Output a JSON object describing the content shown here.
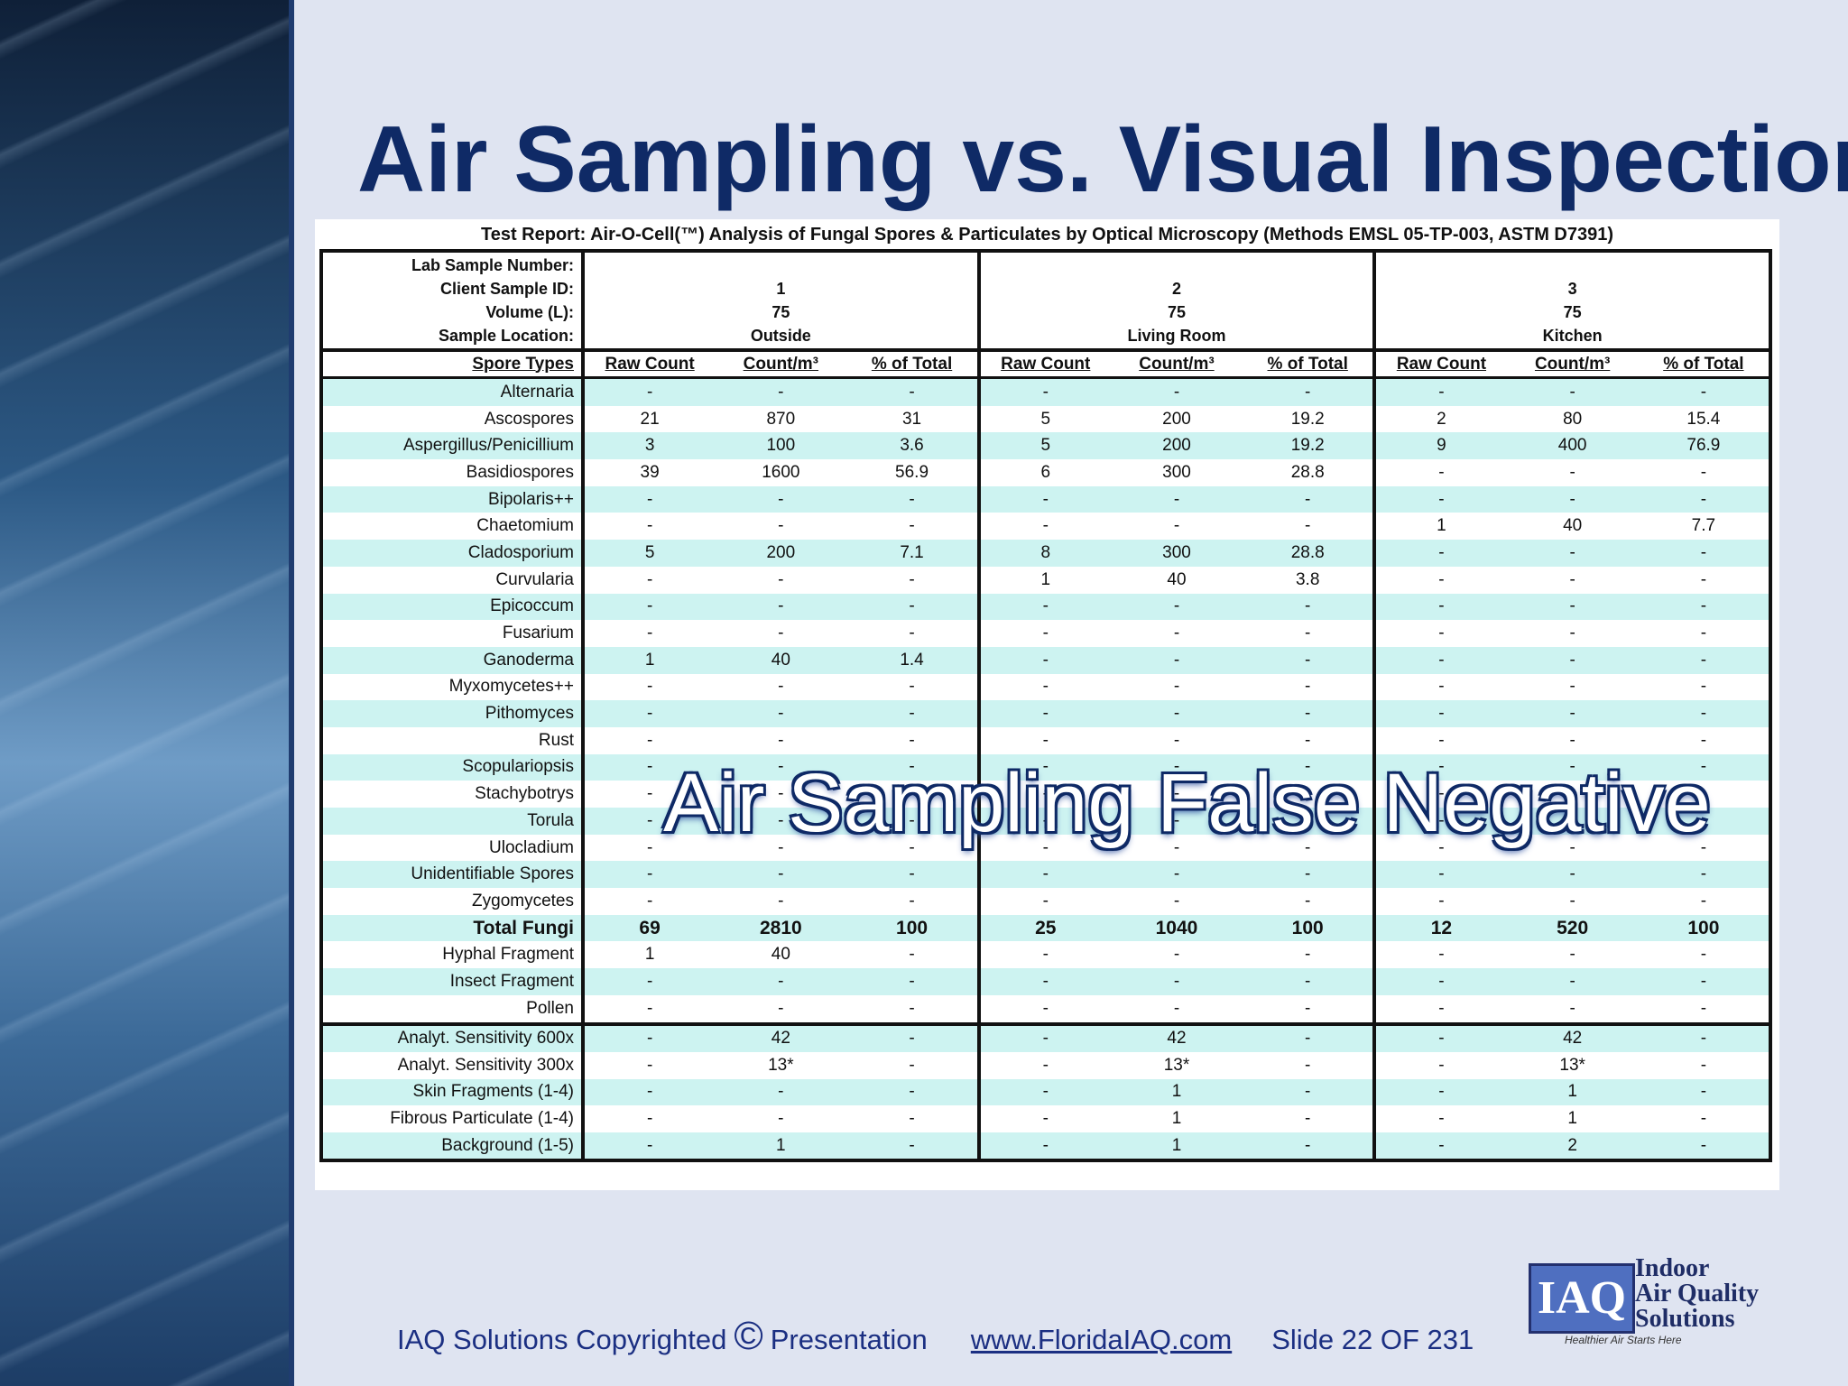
{
  "title": "Air Sampling vs. Visual Inspection",
  "table": {
    "caption": "Test Report: Air-O-Cell(™) Analysis of Fungal Spores & Particulates by Optical Microscopy (Methods EMSL 05-TP-003, ASTM D7391)",
    "header_labels": [
      "Lab Sample Number:",
      "Client Sample ID:",
      "Volume (L):",
      "Sample Location:"
    ],
    "samples": [
      {
        "client_id": "1",
        "volume": 75,
        "location": "Outside"
      },
      {
        "client_id": "2",
        "volume": 75,
        "location": "Living Room"
      },
      {
        "client_id": "3",
        "volume": 75,
        "location": "Kitchen"
      }
    ],
    "column_headers": [
      "Spore Types",
      "Raw Count",
      "Count/m³",
      "% of Total"
    ],
    "rows": [
      {
        "name": "Alternaria",
        "values": [
          "-",
          "-",
          "-",
          "-",
          "-",
          "-",
          "-",
          "-",
          "-"
        ]
      },
      {
        "name": "Ascospores",
        "values": [
          21,
          870,
          31,
          5,
          200,
          19.2,
          2,
          80,
          15.4
        ]
      },
      {
        "name": "Aspergillus/Penicillium",
        "values": [
          3,
          100,
          3.6,
          5,
          200,
          19.2,
          9,
          400,
          76.9
        ]
      },
      {
        "name": "Basidiospores",
        "values": [
          39,
          1600,
          56.9,
          6,
          300,
          28.8,
          "-",
          "-",
          "-"
        ]
      },
      {
        "name": "Bipolaris++",
        "values": [
          "-",
          "-",
          "-",
          "-",
          "-",
          "-",
          "-",
          "-",
          "-"
        ]
      },
      {
        "name": "Chaetomium",
        "values": [
          "-",
          "-",
          "-",
          "-",
          "-",
          "-",
          1,
          40,
          7.7
        ]
      },
      {
        "name": "Cladosporium",
        "values": [
          5,
          200,
          7.1,
          8,
          300,
          28.8,
          "-",
          "-",
          "-"
        ]
      },
      {
        "name": "Curvularia",
        "values": [
          "-",
          "-",
          "-",
          1,
          40,
          3.8,
          "-",
          "-",
          "-"
        ]
      },
      {
        "name": "Epicoccum",
        "values": [
          "-",
          "-",
          "-",
          "-",
          "-",
          "-",
          "-",
          "-",
          "-"
        ]
      },
      {
        "name": "Fusarium",
        "values": [
          "-",
          "-",
          "-",
          "-",
          "-",
          "-",
          "-",
          "-",
          "-"
        ]
      },
      {
        "name": "Ganoderma",
        "values": [
          1,
          40,
          1.4,
          "-",
          "-",
          "-",
          "-",
          "-",
          "-"
        ]
      },
      {
        "name": "Myxomycetes++",
        "values": [
          "-",
          "-",
          "-",
          "-",
          "-",
          "-",
          "-",
          "-",
          "-"
        ]
      },
      {
        "name": "Pithomyces",
        "values": [
          "-",
          "-",
          "-",
          "-",
          "-",
          "-",
          "-",
          "-",
          "-"
        ]
      },
      {
        "name": "Rust",
        "values": [
          "-",
          "-",
          "-",
          "-",
          "-",
          "-",
          "-",
          "-",
          "-"
        ]
      },
      {
        "name": "Scopulariopsis",
        "values": [
          "-",
          "-",
          "-",
          "-",
          "-",
          "-",
          "-",
          "-",
          "-"
        ]
      },
      {
        "name": "Stachybotrys",
        "values": [
          "-",
          "-",
          "-",
          "-",
          "-",
          "-",
          "-",
          "-",
          "-"
        ]
      },
      {
        "name": "Torula",
        "values": [
          "-",
          "-",
          "-",
          "-",
          "-",
          "-",
          "-",
          "-",
          "-"
        ]
      },
      {
        "name": "Ulocladium",
        "values": [
          "-",
          "-",
          "-",
          "-",
          "-",
          "-",
          "-",
          "-",
          "-"
        ]
      },
      {
        "name": "Unidentifiable Spores",
        "values": [
          "-",
          "-",
          "-",
          "-",
          "-",
          "-",
          "-",
          "-",
          "-"
        ]
      },
      {
        "name": "Zygomycetes",
        "values": [
          "-",
          "-",
          "-",
          "-",
          "-",
          "-",
          "-",
          "-",
          "-"
        ]
      },
      {
        "name": "Total Fungi",
        "values": [
          69,
          2810,
          100,
          25,
          1040,
          100,
          12,
          520,
          100
        ]
      },
      {
        "name": "Hyphal Fragment",
        "values": [
          1,
          40,
          "-",
          "-",
          "-",
          "-",
          "-",
          "-",
          "-"
        ]
      },
      {
        "name": "Insect Fragment",
        "values": [
          "-",
          "-",
          "-",
          "-",
          "-",
          "-",
          "-",
          "-",
          "-"
        ]
      },
      {
        "name": "Pollen",
        "values": [
          "-",
          "-",
          "-",
          "-",
          "-",
          "-",
          "-",
          "-",
          "-"
        ]
      }
    ],
    "other_rows": [
      {
        "name": "Analyt. Sensitivity 600x",
        "values": [
          "-",
          42,
          "-",
          "-",
          42,
          "-",
          "-",
          42,
          "-"
        ]
      },
      {
        "name": "Analyt. Sensitivity 300x",
        "values": [
          "-",
          "13*",
          "-",
          "-",
          "13*",
          "-",
          "-",
          "13*",
          "-"
        ]
      },
      {
        "name": "Skin Fragments (1-4)",
        "values": [
          "-",
          "-",
          "-",
          "-",
          1,
          "-",
          "-",
          1,
          "-"
        ]
      },
      {
        "name": "Fibrous Particulate (1-4)",
        "values": [
          "-",
          "-",
          "-",
          "-",
          1,
          "-",
          "-",
          1,
          "-"
        ]
      },
      {
        "name": "Background (1-5)",
        "values": [
          "-",
          1,
          "-",
          "-",
          1,
          "-",
          "-",
          2,
          "-"
        ]
      }
    ]
  },
  "overlay": "Air Sampling False Negative",
  "footer": {
    "copyright": "IAQ Solutions Copyrighted",
    "symbol": "©",
    "presentation": "Presentation",
    "url": "www.FloridaIAQ.com",
    "slide": "Slide 22 OF 231"
  },
  "logo": {
    "mark": "IAQ",
    "lines": [
      "Indoor",
      "Air Quality",
      "Solutions"
    ],
    "tagline": "Healthier Air Starts Here"
  }
}
